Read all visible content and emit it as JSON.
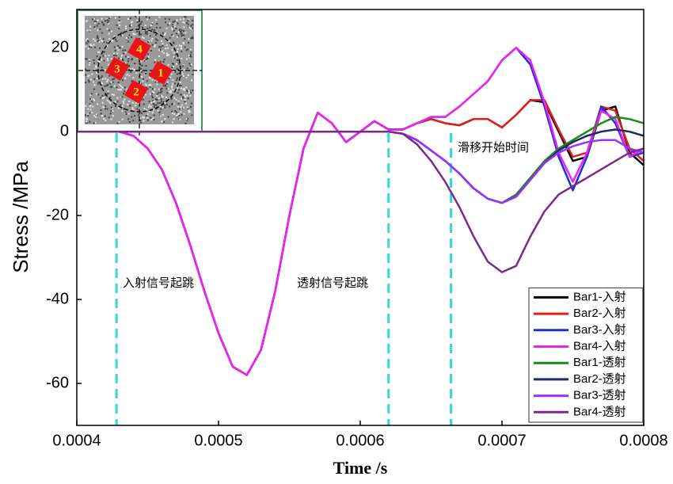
{
  "chart_data": {
    "type": "line",
    "xlabel": "Time /s",
    "ylabel": "Stress /MPa",
    "x": [
      0.0004,
      0.00041,
      0.00042,
      0.00043,
      0.00044,
      0.00045,
      0.00046,
      0.00047,
      0.00048,
      0.00049,
      0.0005,
      0.00051,
      0.00052,
      0.00053,
      0.00054,
      0.00055,
      0.00056,
      0.00057,
      0.00058,
      0.00059,
      0.0006,
      0.00061,
      0.00062,
      0.00063,
      0.00064,
      0.00065,
      0.00066,
      0.00067,
      0.00068,
      0.00069,
      0.0007,
      0.00071,
      0.00072,
      0.00073,
      0.00074,
      0.00075,
      0.00076,
      0.00077,
      0.00078,
      0.00079,
      0.0008
    ],
    "series": [
      {
        "name": "Bar1-入射",
        "color": "#000000",
        "values": [
          0,
          0,
          0,
          0,
          -1,
          -4,
          -9,
          -17,
          -27,
          -38,
          -48,
          -56,
          -58,
          -52,
          -38,
          -20,
          -4,
          4.5,
          2,
          -2.5,
          0,
          2.5,
          0.5,
          0.5,
          2,
          3,
          2,
          1.5,
          3,
          3,
          1,
          4,
          7.5,
          7,
          0,
          -7,
          -6,
          5,
          6,
          -5,
          -8
        ]
      },
      {
        "name": "Bar2-入射",
        "color": "#e0201b",
        "values": [
          0,
          0,
          0,
          0,
          -1,
          -4,
          -9,
          -17,
          -27,
          -38,
          -48,
          -56,
          -58,
          -52,
          -38,
          -20,
          -4,
          4.5,
          2,
          -2.5,
          0,
          2.5,
          0.5,
          0.5,
          2,
          3,
          2,
          1.5,
          3,
          3,
          1,
          4,
          7.5,
          7.5,
          0.5,
          -6,
          -5,
          6,
          5,
          -4,
          -7
        ]
      },
      {
        "name": "Bar3-入射",
        "color": "#1f2fd8",
        "values": [
          0,
          0,
          0,
          0,
          -1,
          -4,
          -9,
          -17,
          -27,
          -38,
          -48,
          -56,
          -58,
          -52,
          -38,
          -20,
          -4,
          4.5,
          2,
          -2.5,
          0,
          2.5,
          0.5,
          0.5,
          2,
          3.5,
          3.5,
          6,
          9,
          12,
          17,
          20,
          16,
          6,
          -6,
          -14,
          -6,
          6,
          2,
          -6,
          -5
        ]
      },
      {
        "name": "Bar4-入射",
        "color": "#ee22ee",
        "values": [
          0,
          0,
          0,
          0,
          -1,
          -4,
          -9,
          -17,
          -27,
          -38,
          -48,
          -56,
          -58,
          -52,
          -38,
          -20,
          -4,
          4.5,
          2,
          -2.5,
          0,
          2.5,
          0.5,
          0.5,
          2,
          3.5,
          3.5,
          6,
          9,
          12,
          17,
          20,
          17,
          7,
          -5,
          -12,
          -5,
          5,
          3,
          -6,
          -4
        ]
      },
      {
        "name": "Bar1-透射",
        "color": "#1a8a1a",
        "values": [
          0,
          0,
          0,
          0,
          0,
          0,
          0,
          0,
          0,
          0,
          0,
          0,
          0,
          0,
          0,
          0,
          0,
          0,
          0,
          0,
          0,
          0,
          0,
          -0.5,
          -2,
          -4.5,
          -7,
          -10,
          -13.5,
          -16,
          -17,
          -15,
          -11,
          -7,
          -4,
          -2,
          0,
          2,
          3.5,
          3,
          2
        ]
      },
      {
        "name": "Bar2-透射",
        "color": "#1b2a6b",
        "values": [
          0,
          0,
          0,
          0,
          0,
          0,
          0,
          0,
          0,
          0,
          0,
          0,
          0,
          0,
          0,
          0,
          0,
          0,
          0,
          0,
          0,
          0,
          0,
          -0.5,
          -2,
          -4.5,
          -7,
          -10,
          -13.5,
          -16,
          -17,
          -15.5,
          -11.5,
          -7.5,
          -4.5,
          -2.5,
          -1,
          0,
          0.5,
          0,
          -1
        ]
      },
      {
        "name": "Bar3-透射",
        "color": "#9b30ff",
        "values": [
          0,
          0,
          0,
          0,
          0,
          0,
          0,
          0,
          0,
          0,
          0,
          0,
          0,
          0,
          0,
          0,
          0,
          0,
          0,
          0,
          0,
          0,
          0,
          -0.5,
          -2,
          -4.5,
          -7,
          -10,
          -13.5,
          -16,
          -17,
          -15.5,
          -11.5,
          -7.5,
          -5,
          -3.5,
          -2.5,
          -2,
          -2,
          -4,
          -5
        ]
      },
      {
        "name": "Bar4-透射",
        "color": "#7b2a8b",
        "values": [
          0,
          0,
          0,
          0,
          0,
          0,
          0,
          0,
          0,
          0,
          0,
          0,
          0,
          0,
          0,
          0,
          0,
          0,
          0,
          0,
          0,
          0,
          0,
          -0.5,
          -3,
          -7,
          -12,
          -18,
          -25,
          -31,
          -33.5,
          -32,
          -25,
          -19,
          -15,
          -13,
          -11,
          -9,
          -7,
          -5,
          -4
        ]
      }
    ],
    "xlim": [
      0.0004,
      0.0008
    ],
    "xticks": [
      0.0004,
      0.0005,
      0.0006,
      0.0007,
      0.0008
    ],
    "ylim": [
      -70,
      29.1
    ],
    "yticks": [
      20,
      0,
      -20,
      -40,
      -60
    ],
    "legend": "lower right",
    "annotations": [
      {
        "x": 0.000428,
        "text": "入射信号起跳"
      },
      {
        "x": 0.00062,
        "text": "透射信号起跳"
      },
      {
        "x": 0.000664,
        "text": "滑移开始时间"
      }
    ],
    "inset_labels": [
      "4",
      "3",
      "1",
      "2"
    ]
  }
}
